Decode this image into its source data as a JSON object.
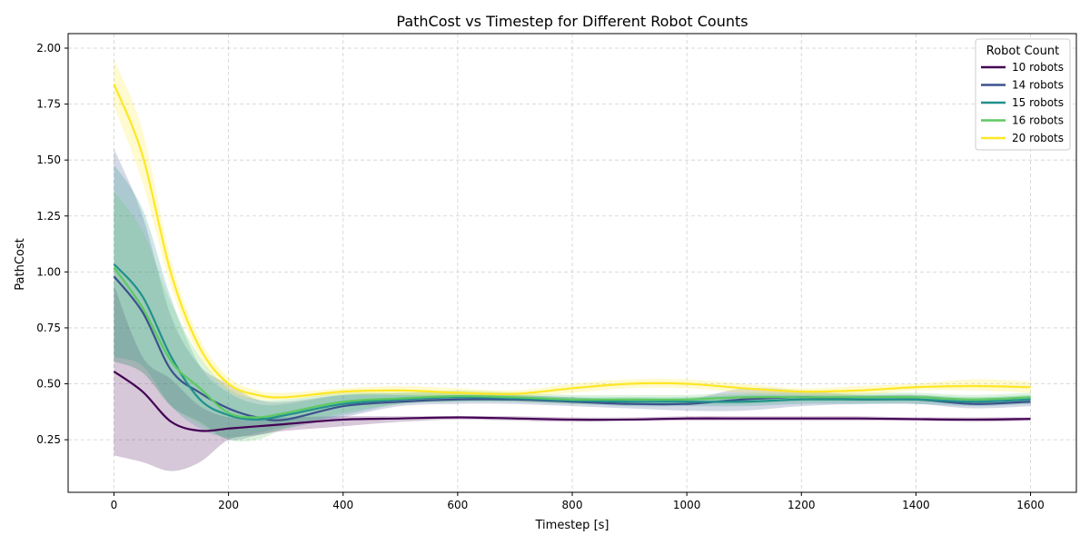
{
  "chart_data": {
    "type": "line",
    "title": "PathCost vs Timestep for Different Robot Counts",
    "xlabel": "Timestep [s]",
    "ylabel": "PathCost",
    "xlim": [
      -80,
      1680
    ],
    "ylim": [
      0.015,
      2.065
    ],
    "xticks": [
      0,
      200,
      400,
      600,
      800,
      1000,
      1200,
      1400,
      1600
    ],
    "yticks": [
      0.25,
      0.5,
      0.75,
      1.0,
      1.25,
      1.5,
      1.75,
      2.0
    ],
    "xtick_labels": [
      "0",
      "200",
      "400",
      "600",
      "800",
      "1000",
      "1200",
      "1400",
      "1600"
    ],
    "ytick_labels": [
      "0.25",
      "0.50",
      "0.75",
      "1.00",
      "1.25",
      "1.50",
      "1.75",
      "2.00"
    ],
    "grid": true,
    "legend": {
      "title": "Robot Count",
      "position": "top-right"
    },
    "x": [
      0,
      50,
      100,
      150,
      200,
      250,
      300,
      400,
      500,
      600,
      700,
      800,
      900,
      1000,
      1100,
      1200,
      1300,
      1400,
      1500,
      1600
    ],
    "series": [
      {
        "name": "10 robots",
        "color": "#440154",
        "values": [
          0.555,
          0.465,
          0.33,
          0.29,
          0.3,
          0.31,
          0.32,
          0.34,
          0.345,
          0.35,
          0.345,
          0.34,
          0.34,
          0.345,
          0.345,
          0.345,
          0.345,
          0.342,
          0.34,
          0.343
        ],
        "lower": [
          0.18,
          0.15,
          0.11,
          0.15,
          0.25,
          0.27,
          0.29,
          0.31,
          0.33,
          0.34,
          0.335,
          0.33,
          0.335,
          0.335,
          0.335,
          0.335,
          0.335,
          0.335,
          0.33,
          0.335
        ],
        "upper": [
          0.94,
          0.62,
          0.52,
          0.4,
          0.35,
          0.35,
          0.35,
          0.355,
          0.355,
          0.355,
          0.355,
          0.35,
          0.35,
          0.355,
          0.355,
          0.355,
          0.355,
          0.35,
          0.35,
          0.35
        ]
      },
      {
        "name": "14 robots",
        "color": "#3b528b",
        "values": [
          0.98,
          0.82,
          0.56,
          0.46,
          0.39,
          0.35,
          0.34,
          0.4,
          0.42,
          0.43,
          0.43,
          0.42,
          0.41,
          0.41,
          0.43,
          0.44,
          0.43,
          0.43,
          0.41,
          0.42
        ],
        "lower": [
          0.6,
          0.55,
          0.4,
          0.33,
          0.25,
          0.27,
          0.3,
          0.35,
          0.4,
          0.41,
          0.41,
          0.4,
          0.39,
          0.38,
          0.38,
          0.4,
          0.41,
          0.41,
          0.39,
          0.4
        ],
        "upper": [
          1.55,
          1.25,
          0.8,
          0.58,
          0.5,
          0.43,
          0.42,
          0.45,
          0.45,
          0.45,
          0.45,
          0.44,
          0.43,
          0.43,
          0.48,
          0.47,
          0.45,
          0.45,
          0.43,
          0.44
        ]
      },
      {
        "name": "15 robots",
        "color": "#21918c",
        "values": [
          1.035,
          0.89,
          0.62,
          0.43,
          0.36,
          0.34,
          0.36,
          0.41,
          0.43,
          0.44,
          0.435,
          0.425,
          0.42,
          0.42,
          0.42,
          0.43,
          0.43,
          0.43,
          0.42,
          0.43
        ],
        "lower": [
          0.62,
          0.58,
          0.4,
          0.3,
          0.26,
          0.28,
          0.31,
          0.36,
          0.41,
          0.42,
          0.42,
          0.41,
          0.4,
          0.4,
          0.4,
          0.41,
          0.41,
          0.41,
          0.4,
          0.41
        ],
        "upper": [
          1.48,
          1.28,
          0.88,
          0.58,
          0.46,
          0.41,
          0.41,
          0.45,
          0.46,
          0.46,
          0.45,
          0.44,
          0.44,
          0.44,
          0.45,
          0.45,
          0.45,
          0.45,
          0.44,
          0.45
        ]
      },
      {
        "name": "16 robots",
        "color": "#5ec962",
        "values": [
          1.02,
          0.84,
          0.6,
          0.48,
          0.37,
          0.35,
          0.37,
          0.42,
          0.435,
          0.445,
          0.44,
          0.43,
          0.43,
          0.43,
          0.44,
          0.44,
          0.44,
          0.44,
          0.43,
          0.44
        ],
        "lower": [
          0.6,
          0.55,
          0.4,
          0.32,
          0.25,
          0.25,
          0.3,
          0.37,
          0.41,
          0.42,
          0.42,
          0.41,
          0.41,
          0.41,
          0.41,
          0.42,
          0.42,
          0.42,
          0.41,
          0.42
        ],
        "upper": [
          1.36,
          1.18,
          0.86,
          0.62,
          0.48,
          0.43,
          0.43,
          0.46,
          0.46,
          0.47,
          0.46,
          0.45,
          0.45,
          0.45,
          0.46,
          0.46,
          0.46,
          0.46,
          0.45,
          0.46
        ]
      },
      {
        "name": "20 robots",
        "color": "#fde725",
        "values": [
          1.84,
          1.52,
          0.99,
          0.66,
          0.5,
          0.45,
          0.44,
          0.465,
          0.47,
          0.46,
          0.455,
          0.48,
          0.5,
          0.5,
          0.48,
          0.465,
          0.47,
          0.485,
          0.49,
          0.485
        ],
        "lower": [
          1.74,
          1.4,
          0.93,
          0.62,
          0.47,
          0.43,
          0.43,
          0.45,
          0.45,
          0.44,
          0.44,
          0.46,
          0.48,
          0.48,
          0.46,
          0.45,
          0.45,
          0.47,
          0.47,
          0.46
        ],
        "upper": [
          1.95,
          1.63,
          1.05,
          0.7,
          0.53,
          0.47,
          0.46,
          0.48,
          0.49,
          0.48,
          0.47,
          0.5,
          0.52,
          0.52,
          0.5,
          0.48,
          0.49,
          0.5,
          0.52,
          0.51
        ]
      }
    ]
  }
}
